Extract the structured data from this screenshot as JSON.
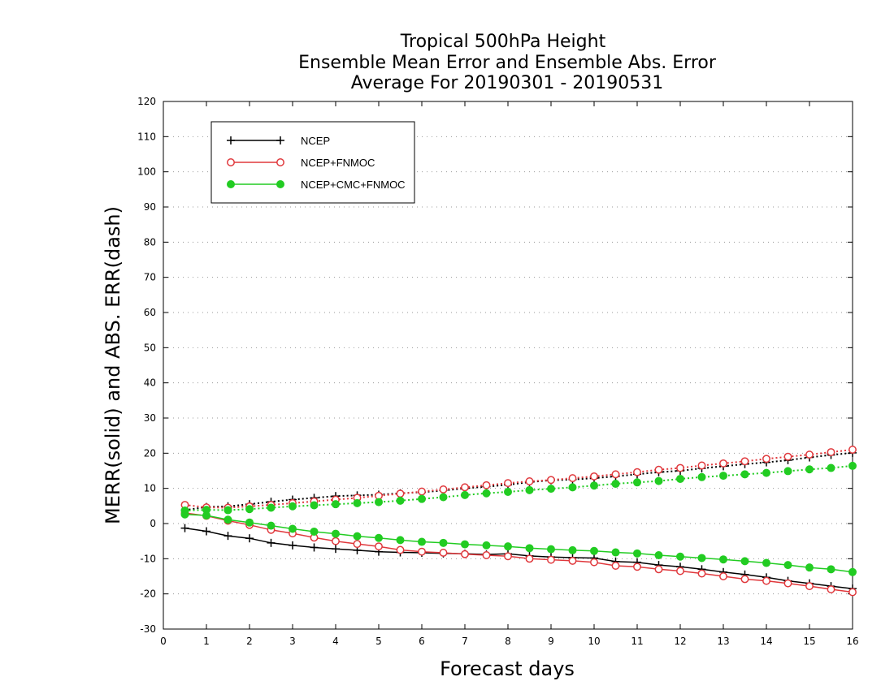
{
  "chart_data": {
    "type": "line",
    "title": [
      "Tropical 500hPa Height",
      "Ensemble Mean Error and Ensemble Abs. Error",
      "Average For 20190301 - 20190531"
    ],
    "xlabel": "Forecast days",
    "ylabel": "MERR(solid) and ABS. ERR(dash)",
    "xlim": [
      0,
      16
    ],
    "ylim": [
      -30,
      120
    ],
    "xticks": [
      0,
      1,
      2,
      3,
      4,
      5,
      6,
      7,
      8,
      9,
      10,
      11,
      12,
      13,
      14,
      15,
      16
    ],
    "yticks": [
      -30,
      -20,
      -10,
      0,
      10,
      20,
      30,
      40,
      50,
      60,
      70,
      80,
      90,
      100,
      110,
      120
    ],
    "grid": "horizontal-dotted",
    "legend_position": "top-left",
    "x": [
      0.5,
      1,
      1.5,
      2,
      2.5,
      3,
      3.5,
      4,
      4.5,
      5,
      5.5,
      6,
      6.5,
      7,
      7.5,
      8,
      8.5,
      9,
      9.5,
      10,
      10.5,
      11,
      11.5,
      12,
      12.5,
      13,
      13.5,
      14,
      14.5,
      15,
      15.5,
      16
    ],
    "series": [
      {
        "name": "NCEP",
        "color": "#000000",
        "marker": "plus",
        "merr": [
          -1.3,
          -2.2,
          -3.5,
          -4.2,
          -5.5,
          -6.2,
          -6.8,
          -7.2,
          -7.6,
          -8.0,
          -8.2,
          -8.3,
          -8.5,
          -8.6,
          -8.8,
          -8.6,
          -9.2,
          -9.5,
          -9.7,
          -9.8,
          -10.8,
          -11.0,
          -11.8,
          -12.3,
          -13.0,
          -13.8,
          -14.5,
          -15.3,
          -16.3,
          -17.0,
          -17.8,
          -18.5
        ],
        "abserr": [
          3.8,
          4.7,
          4.9,
          5.5,
          6.2,
          6.8,
          7.3,
          7.8,
          8.0,
          8.2,
          8.6,
          8.9,
          9.4,
          10.0,
          10.5,
          11.0,
          11.8,
          12.3,
          12.5,
          12.9,
          13.4,
          14.0,
          14.6,
          15.0,
          15.7,
          16.3,
          16.9,
          17.4,
          18.0,
          18.8,
          19.5,
          20.1
        ]
      },
      {
        "name": "NCEP+FNMOC",
        "color": "#e0383c",
        "marker": "open-circle",
        "merr": [
          3.0,
          2.2,
          0.8,
          -0.4,
          -1.8,
          -2.8,
          -4.0,
          -5.0,
          -5.8,
          -6.5,
          -7.5,
          -8.0,
          -8.3,
          -8.7,
          -9.0,
          -9.3,
          -10.0,
          -10.3,
          -10.6,
          -11.0,
          -12.0,
          -12.3,
          -13.0,
          -13.5,
          -14.2,
          -15.0,
          -15.8,
          -16.3,
          -17.0,
          -17.8,
          -18.7,
          -19.5
        ],
        "abserr": [
          5.3,
          4.6,
          4.5,
          4.9,
          5.3,
          5.8,
          6.3,
          6.8,
          7.3,
          7.9,
          8.5,
          9.1,
          9.7,
          10.3,
          10.9,
          11.5,
          12.0,
          12.4,
          12.9,
          13.4,
          14.0,
          14.6,
          15.3,
          15.8,
          16.5,
          17.1,
          17.7,
          18.4,
          19.0,
          19.6,
          20.3,
          21.0
        ]
      },
      {
        "name": "NCEP+CMC+FNMOC",
        "color": "#22cc22",
        "marker": "filled-circle",
        "merr": [
          2.6,
          2.3,
          1.1,
          0.3,
          -0.6,
          -1.5,
          -2.3,
          -2.9,
          -3.6,
          -4.1,
          -4.7,
          -5.2,
          -5.5,
          -5.9,
          -6.2,
          -6.5,
          -7.0,
          -7.3,
          -7.6,
          -7.8,
          -8.2,
          -8.5,
          -9.0,
          -9.4,
          -9.8,
          -10.2,
          -10.7,
          -11.2,
          -11.8,
          -12.5,
          -13.0,
          -13.8
        ],
        "abserr": [
          3.7,
          3.9,
          3.8,
          4.1,
          4.5,
          4.9,
          5.2,
          5.5,
          5.8,
          6.1,
          6.5,
          7.0,
          7.5,
          8.1,
          8.6,
          9.0,
          9.5,
          9.9,
          10.3,
          10.8,
          11.3,
          11.7,
          12.1,
          12.7,
          13.2,
          13.6,
          14.0,
          14.4,
          14.9,
          15.4,
          15.8,
          16.4
        ]
      }
    ]
  }
}
